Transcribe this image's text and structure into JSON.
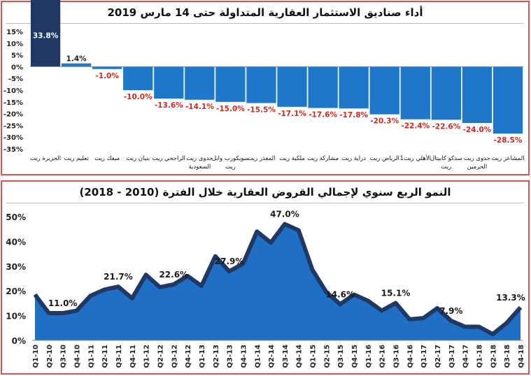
{
  "chart_data": [
    {
      "type": "bar",
      "title": "أداء صناديق الاستثمار العقارية المتداولة حتى 14 مارس 2019",
      "categories": [
        "الجزيرة ريت",
        "تعليم ريت",
        "ميفك ريت",
        "بنيان ريت",
        "الراجحي ريت",
        "جدوى ريت السعودية",
        "سويكورب وابل ريت",
        "المعذر ريت",
        "ملكية ريت",
        "مشاركة ريت",
        "دراية ريت",
        "الرياض ريت",
        "الأهلي ريت1",
        "سدكو كابيتال ريت",
        "جدوى ريت الحرمين",
        "المشاعر ريت"
      ],
      "values": [
        33.8,
        1.4,
        -1.0,
        -10.0,
        -13.6,
        -14.1,
        -15.0,
        -15.5,
        -17.1,
        -17.6,
        -17.8,
        -20.3,
        -22.4,
        -22.6,
        -24.0,
        -28.5
      ],
      "value_labels": [
        "33.8%",
        "1.4%",
        "-1.0%",
        "-10.0%",
        "-13.6%",
        "-14.1%",
        "-15.0%",
        "-15.5%",
        "-17.1%",
        "-17.6%",
        "-17.8%",
        "-20.3%",
        "-22.4%",
        "-22.6%",
        "-24.0%",
        "-28.5%"
      ],
      "yticks": [
        "15%",
        "10%",
        "5%",
        "0%",
        "-5%",
        "-10%",
        "-15%",
        "-20%",
        "-25%",
        "-30%",
        "-35%"
      ],
      "ytick_values": [
        15,
        10,
        5,
        0,
        -5,
        -10,
        -15,
        -20,
        -25,
        -30,
        -35
      ],
      "ylim": [
        -35,
        15
      ],
      "grid": false,
      "colors": {
        "first_bar": "#1f3864",
        "bars": "#1f77c9",
        "positive_label": "#1f1f1f",
        "negative_label": "#d9261c"
      }
    },
    {
      "type": "area",
      "title": "النمو الربع سنوي لإجمالي القروض العقارية خلال الفترة (2010 - 2018)",
      "categories": [
        "Q1-10",
        "Q2-10",
        "Q3-10",
        "Q4-10",
        "Q1-11",
        "Q2-11",
        "Q3-11",
        "Q4-11",
        "Q1-12",
        "Q2-12",
        "Q3-12",
        "Q4-12",
        "Q1-13",
        "Q2-13",
        "Q3-13",
        "Q4-13",
        "Q1-14",
        "Q2-14",
        "Q3-14",
        "Q4-14",
        "Q1-15",
        "Q2-15",
        "Q3-15",
        "Q4-15",
        "Q1-16",
        "Q2-16",
        "Q3-16",
        "Q4-16",
        "Q1-17",
        "Q2-17",
        "Q3-17",
        "Q4-17",
        "Q1-18",
        "Q2-18",
        "Q3-18",
        "Q4-18"
      ],
      "values": [
        18.5,
        11.0,
        11.0,
        12.0,
        18.0,
        20.5,
        21.7,
        17.0,
        26.5,
        21.5,
        22.6,
        26.0,
        22.0,
        34.0,
        27.9,
        31.0,
        44.0,
        39.5,
        47.0,
        44.5,
        28.5,
        19.5,
        14.6,
        18.5,
        16.0,
        12.0,
        15.1,
        8.5,
        9.0,
        13.0,
        7.9,
        5.5,
        5.5,
        2.5,
        7.0,
        13.3
      ],
      "annotations": [
        {
          "index": 2,
          "label": "11.0%"
        },
        {
          "index": 6,
          "label": "21.7%"
        },
        {
          "index": 10,
          "label": "22.6%"
        },
        {
          "index": 14,
          "label": "27.9%"
        },
        {
          "index": 18,
          "label": "47.0%"
        },
        {
          "index": 22,
          "label": "14.6%"
        },
        {
          "index": 26,
          "label": "15.1%"
        },
        {
          "index": 30,
          "label": "7.9%"
        },
        {
          "index": 35,
          "label": "13.3%"
        }
      ],
      "yticks": [
        "50%",
        "40%",
        "30%",
        "20%",
        "10%",
        "0%"
      ],
      "ytick_values": [
        50,
        40,
        30,
        20,
        10,
        0
      ],
      "ylim": [
        0,
        50
      ],
      "grid": false,
      "colors": {
        "fill": "#1f6fc4",
        "line": "#1f3864"
      }
    }
  ]
}
